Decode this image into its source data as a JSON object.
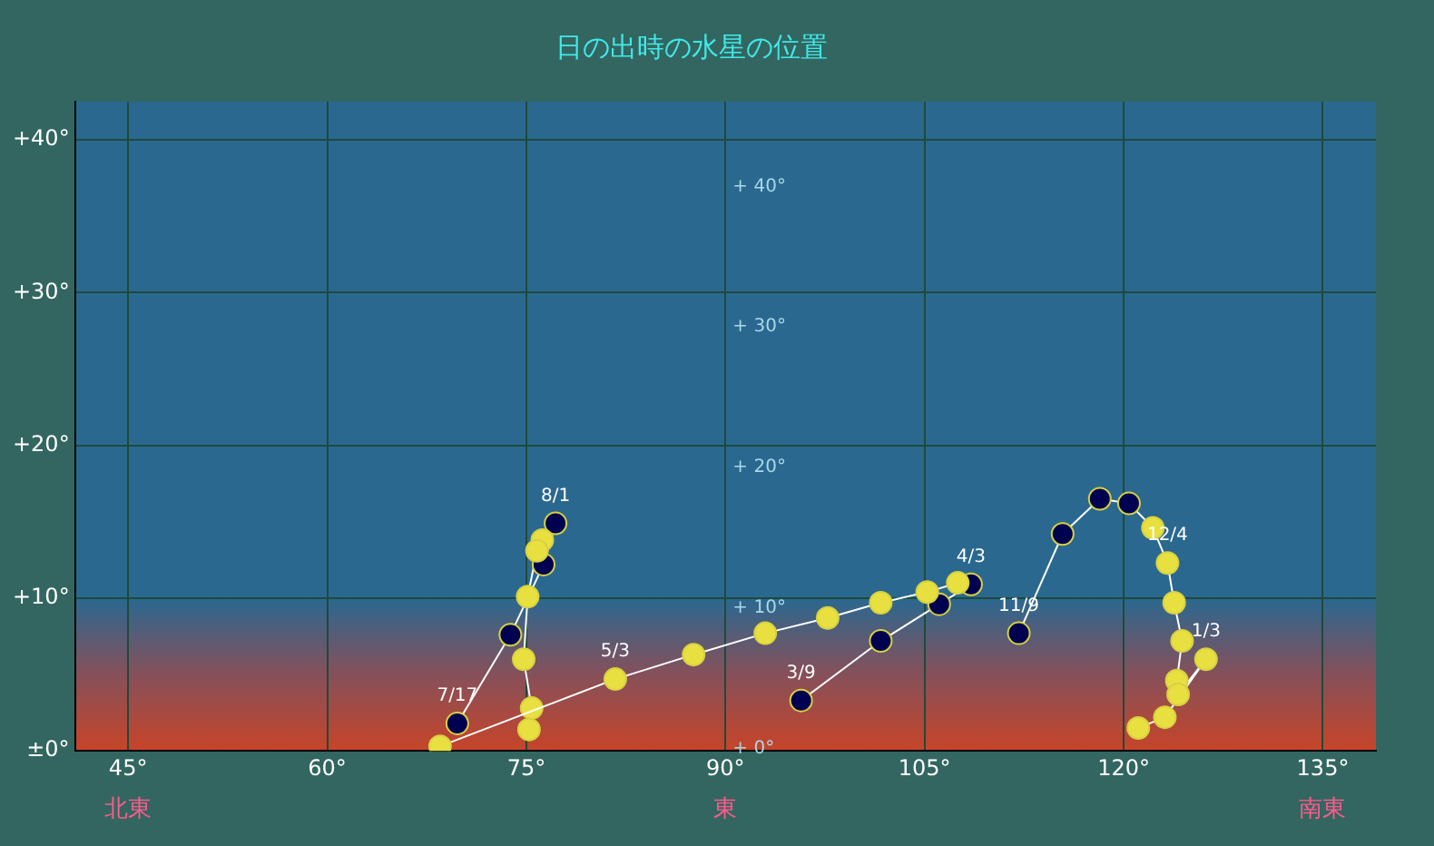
{
  "chart_data": {
    "type": "line",
    "title": "日の出時の水星の位置",
    "xlim": [
      41,
      139
    ],
    "ylim": [
      0,
      42.5
    ],
    "xticks": [
      {
        "value": 45,
        "label": "45°"
      },
      {
        "value": 60,
        "label": "60°"
      },
      {
        "value": 75,
        "label": "75°"
      },
      {
        "value": 90,
        "label": "90°"
      },
      {
        "value": 105,
        "label": "105°"
      },
      {
        "value": 120,
        "label": "120°"
      },
      {
        "value": 135,
        "label": "135°"
      }
    ],
    "yticks": [
      {
        "value": 0,
        "label": "±0°"
      },
      {
        "value": 10,
        "label": "+10°"
      },
      {
        "value": 20,
        "label": "+20°"
      },
      {
        "value": 30,
        "label": "+30°"
      },
      {
        "value": 40,
        "label": "+40°"
      }
    ],
    "y2lim": [
      -0.3,
      45.9
    ],
    "y2ticks": [
      {
        "value": 0,
        "label": "+ 0°"
      },
      {
        "value": 10,
        "label": "+ 10°"
      },
      {
        "value": 20,
        "label": "+ 20°"
      },
      {
        "value": 30,
        "label": "+ 30°"
      },
      {
        "value": 40,
        "label": "+ 40°"
      }
    ],
    "grid": true,
    "legend": false,
    "marker": "circle",
    "line_style": "solid",
    "series": [
      {
        "color": "#ffffff",
        "x": [
          95.7,
          101.7,
          106.1,
          108.5,
          107.5,
          105.2,
          101.7,
          97.7,
          93.0,
          87.6,
          81.7,
          68.5
        ],
        "values": [
          3.3,
          7.2,
          9.6,
          10.9,
          11.0,
          10.4,
          9.7,
          8.7,
          7.7,
          6.3,
          4.7,
          0.3
        ],
        "colors": [
          "#000050",
          "#000050",
          "#000050",
          "#000050",
          "#e8e040",
          "#e8e040",
          "#e8e040",
          "#e8e040",
          "#e8e040",
          "#e8e040",
          "#e8e040",
          "#e8e040"
        ]
      },
      {
        "color": "#ffffff",
        "x": [
          69.8,
          73.8,
          76.3,
          77.2,
          76.2,
          75.8,
          75.1,
          74.8,
          75.4,
          75.2
        ],
        "values": [
          1.8,
          7.6,
          12.2,
          14.9,
          13.8,
          13.1,
          10.1,
          6.0,
          2.8,
          1.4
        ],
        "colors": [
          "#000050",
          "#000050",
          "#000050",
          "#000050",
          "#e8e040",
          "#e8e040",
          "#e8e040",
          "#e8e040",
          "#e8e040",
          "#e8e040"
        ]
      },
      {
        "color": "#ffffff",
        "x": [
          112.1,
          115.4,
          118.2,
          120.4,
          122.2,
          123.3,
          123.8,
          124.4,
          124.0,
          124.1,
          126.2,
          123.1,
          121.1
        ],
        "values": [
          7.7,
          14.2,
          16.5,
          16.2,
          14.6,
          12.3,
          9.7,
          7.2,
          4.6,
          3.7,
          6.0,
          2.2,
          1.5
        ],
        "colors": [
          "#000050",
          "#000050",
          "#000050",
          "#000050",
          "#e8e040",
          "#e8e040",
          "#e8e040",
          "#e8e040",
          "#e8e040",
          "#e8e040",
          "#e8e040",
          "#e8e040",
          "#e8e040"
        ]
      }
    ],
    "annotations": [
      {
        "text": "3/9",
        "x": 95.7,
        "y": 3.3
      },
      {
        "text": "4/3",
        "x": 108.5,
        "y": 10.9
      },
      {
        "text": "5/3",
        "x": 81.7,
        "y": 4.7
      },
      {
        "text": "7/17",
        "x": 69.8,
        "y": 1.8
      },
      {
        "text": "8/1",
        "x": 77.2,
        "y": 14.9
      },
      {
        "text": "11/9",
        "x": 112.1,
        "y": 7.7
      },
      {
        "text": "12/4",
        "x": 123.3,
        "y": 12.3
      },
      {
        "text": "1/3",
        "x": 126.2,
        "y": 6.0
      },
      "北東",
      "東",
      "南東"
    ]
  }
}
